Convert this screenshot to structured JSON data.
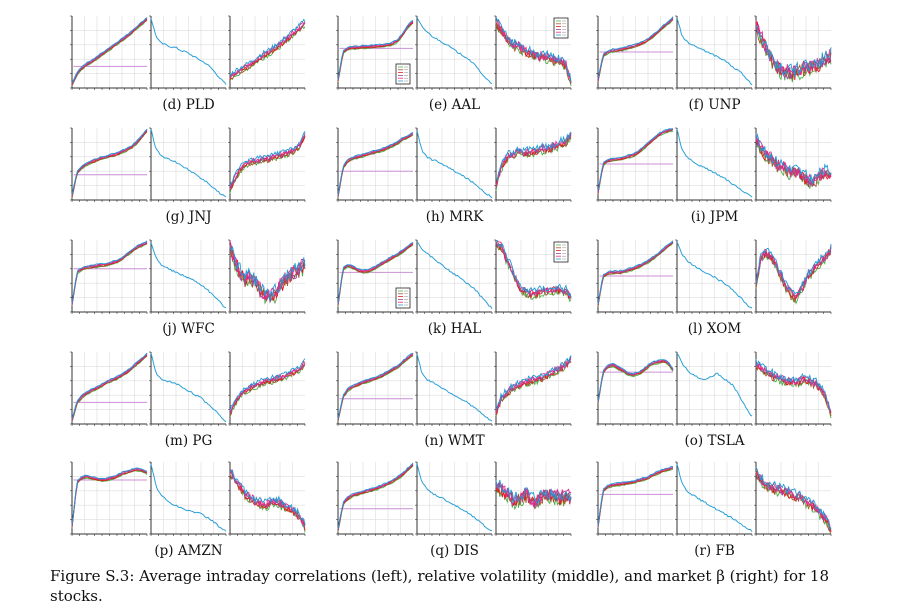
{
  "caption": "Figure S.3: Average intraday correlations (left), relative volatility (middle), and market β (right) for 18 stocks.",
  "colors": {
    "series": [
      "#4daf4a",
      "#a65628",
      "#e41a1c",
      "#984ea3",
      "#e7298a",
      "#1f9bd6"
    ],
    "reference": "#cc8fd6",
    "volatility": "#2aa0d8",
    "grid": "#dcdcdc",
    "frame": "#333333"
  },
  "chart_data": [
    {
      "type": "line",
      "label": "(d) PLD",
      "corr": [
        0.05,
        0.2,
        0.28,
        0.33,
        0.37,
        0.42,
        0.47,
        0.52,
        0.57,
        0.62,
        0.67,
        0.72,
        0.78,
        0.84,
        0.9,
        0.96
      ],
      "corr_ref": 0.3,
      "vol": [
        0.97,
        0.72,
        0.62,
        0.6,
        0.57,
        0.56,
        0.52,
        0.5,
        0.46,
        0.42,
        0.38,
        0.34,
        0.28,
        0.2,
        0.12,
        0.05
      ],
      "beta": [
        0.15,
        0.2,
        0.24,
        0.28,
        0.32,
        0.37,
        0.42,
        0.46,
        0.5,
        0.55,
        0.6,
        0.66,
        0.72,
        0.78,
        0.84,
        0.9
      ],
      "beta_noise": 0.03,
      "legend_right": false,
      "legend_left": false
    },
    {
      "type": "line",
      "label": "(e) AAL",
      "corr": [
        0.1,
        0.5,
        0.55,
        0.56,
        0.56,
        0.57,
        0.57,
        0.58,
        0.58,
        0.59,
        0.6,
        0.62,
        0.66,
        0.75,
        0.86,
        0.92
      ],
      "corr_ref": 0.55,
      "vol": [
        0.97,
        0.85,
        0.78,
        0.72,
        0.68,
        0.64,
        0.6,
        0.55,
        0.5,
        0.46,
        0.42,
        0.36,
        0.28,
        0.2,
        0.12,
        0.05
      ],
      "beta": [
        0.9,
        0.82,
        0.68,
        0.62,
        0.58,
        0.55,
        0.5,
        0.48,
        0.45,
        0.43,
        0.42,
        0.4,
        0.38,
        0.36,
        0.3,
        0.1
      ],
      "beta_noise": 0.06,
      "legend_right": true,
      "legend_left": true
    },
    {
      "type": "line",
      "label": "(f) UNP",
      "corr": [
        0.1,
        0.45,
        0.5,
        0.52,
        0.53,
        0.54,
        0.56,
        0.58,
        0.6,
        0.63,
        0.67,
        0.72,
        0.78,
        0.85,
        0.9,
        0.97
      ],
      "corr_ref": 0.5,
      "vol": [
        0.98,
        0.72,
        0.64,
        0.6,
        0.57,
        0.54,
        0.5,
        0.47,
        0.44,
        0.4,
        0.36,
        0.3,
        0.25,
        0.2,
        0.12,
        0.05
      ],
      "beta": [
        0.88,
        0.7,
        0.55,
        0.42,
        0.32,
        0.25,
        0.22,
        0.2,
        0.2,
        0.25,
        0.3,
        0.28,
        0.3,
        0.35,
        0.4,
        0.45
      ],
      "beta_noise": 0.1,
      "legend_right": false,
      "legend_left": false
    },
    {
      "type": "line",
      "label": "(g) JNJ",
      "corr": [
        0.05,
        0.38,
        0.46,
        0.5,
        0.53,
        0.56,
        0.58,
        0.6,
        0.62,
        0.64,
        0.67,
        0.7,
        0.74,
        0.8,
        0.88,
        0.97
      ],
      "corr_ref": 0.35,
      "vol": [
        0.98,
        0.7,
        0.62,
        0.58,
        0.56,
        0.52,
        0.48,
        0.44,
        0.4,
        0.36,
        0.3,
        0.26,
        0.2,
        0.14,
        0.08,
        0.04
      ],
      "beta": [
        0.15,
        0.3,
        0.42,
        0.5,
        0.52,
        0.54,
        0.55,
        0.56,
        0.58,
        0.6,
        0.62,
        0.64,
        0.66,
        0.7,
        0.76,
        0.9
      ],
      "beta_noise": 0.03,
      "legend_right": false,
      "legend_left": false
    },
    {
      "type": "line",
      "label": "(h) MRK",
      "corr": [
        0.05,
        0.45,
        0.55,
        0.58,
        0.6,
        0.62,
        0.64,
        0.66,
        0.68,
        0.7,
        0.73,
        0.76,
        0.8,
        0.85,
        0.88,
        0.92
      ],
      "corr_ref": 0.4,
      "vol": [
        0.97,
        0.68,
        0.6,
        0.56,
        0.54,
        0.5,
        0.46,
        0.42,
        0.38,
        0.34,
        0.3,
        0.25,
        0.2,
        0.14,
        0.08,
        0.04
      ],
      "beta": [
        0.2,
        0.45,
        0.58,
        0.62,
        0.65,
        0.66,
        0.66,
        0.67,
        0.68,
        0.7,
        0.7,
        0.72,
        0.75,
        0.78,
        0.82,
        0.9
      ],
      "beta_noise": 0.05,
      "legend_right": false,
      "legend_left": false
    },
    {
      "type": "line",
      "label": "(i) JPM",
      "corr": [
        0.1,
        0.5,
        0.55,
        0.56,
        0.57,
        0.58,
        0.6,
        0.62,
        0.66,
        0.72,
        0.78,
        0.84,
        0.9,
        0.94,
        0.96,
        0.98
      ],
      "corr_ref": 0.5,
      "vol": [
        0.98,
        0.7,
        0.6,
        0.55,
        0.5,
        0.46,
        0.43,
        0.4,
        0.36,
        0.32,
        0.28,
        0.23,
        0.18,
        0.13,
        0.08,
        0.04
      ],
      "beta": [
        0.85,
        0.72,
        0.6,
        0.58,
        0.5,
        0.48,
        0.42,
        0.38,
        0.4,
        0.35,
        0.3,
        0.25,
        0.28,
        0.35,
        0.38,
        0.35
      ],
      "beta_noise": 0.08,
      "legend_right": false,
      "legend_left": false
    },
    {
      "type": "line",
      "label": "(j) WFC",
      "corr": [
        0.1,
        0.55,
        0.6,
        0.62,
        0.63,
        0.64,
        0.65,
        0.66,
        0.68,
        0.7,
        0.74,
        0.8,
        0.85,
        0.9,
        0.93,
        0.96
      ],
      "corr_ref": 0.6,
      "vol": [
        0.97,
        0.75,
        0.66,
        0.62,
        0.58,
        0.55,
        0.52,
        0.49,
        0.46,
        0.42,
        0.38,
        0.33,
        0.26,
        0.2,
        0.12,
        0.05
      ],
      "beta": [
        0.88,
        0.7,
        0.55,
        0.45,
        0.5,
        0.4,
        0.3,
        0.25,
        0.2,
        0.25,
        0.35,
        0.45,
        0.5,
        0.55,
        0.6,
        0.65
      ],
      "beta_noise": 0.1,
      "legend_right": false,
      "legend_left": false
    },
    {
      "type": "line",
      "label": "(k) HAL",
      "corr": [
        0.1,
        0.6,
        0.65,
        0.62,
        0.58,
        0.56,
        0.57,
        0.6,
        0.64,
        0.68,
        0.72,
        0.76,
        0.8,
        0.85,
        0.9,
        0.95
      ],
      "corr_ref": 0.55,
      "vol": [
        0.97,
        0.88,
        0.82,
        0.76,
        0.7,
        0.65,
        0.6,
        0.55,
        0.5,
        0.45,
        0.4,
        0.35,
        0.28,
        0.2,
        0.12,
        0.05
      ],
      "beta": [
        0.95,
        0.9,
        0.75,
        0.6,
        0.45,
        0.32,
        0.28,
        0.25,
        0.25,
        0.28,
        0.3,
        0.3,
        0.32,
        0.3,
        0.28,
        0.2
      ],
      "beta_noise": 0.05,
      "legend_right": true,
      "legend_left": true
    },
    {
      "type": "line",
      "label": "(l) XOM",
      "corr": [
        0.1,
        0.5,
        0.54,
        0.55,
        0.55,
        0.56,
        0.58,
        0.6,
        0.63,
        0.66,
        0.7,
        0.75,
        0.8,
        0.86,
        0.92,
        0.97
      ],
      "corr_ref": 0.5,
      "vol": [
        0.98,
        0.8,
        0.72,
        0.66,
        0.62,
        0.58,
        0.54,
        0.5,
        0.46,
        0.42,
        0.38,
        0.32,
        0.25,
        0.18,
        0.1,
        0.05
      ],
      "beta": [
        0.4,
        0.75,
        0.82,
        0.78,
        0.65,
        0.5,
        0.35,
        0.25,
        0.2,
        0.3,
        0.45,
        0.55,
        0.62,
        0.7,
        0.78,
        0.85
      ],
      "beta_noise": 0.06,
      "legend_right": false,
      "legend_left": false
    },
    {
      "type": "line",
      "label": "(m) PG",
      "corr": [
        0.05,
        0.3,
        0.38,
        0.43,
        0.47,
        0.5,
        0.54,
        0.58,
        0.61,
        0.64,
        0.68,
        0.72,
        0.78,
        0.84,
        0.9,
        0.96
      ],
      "corr_ref": 0.3,
      "vol": [
        0.98,
        0.7,
        0.62,
        0.6,
        0.58,
        0.56,
        0.52,
        0.48,
        0.44,
        0.4,
        0.36,
        0.3,
        0.24,
        0.18,
        0.1,
        0.04
      ],
      "beta": [
        0.15,
        0.3,
        0.4,
        0.46,
        0.5,
        0.53,
        0.56,
        0.58,
        0.6,
        0.62,
        0.64,
        0.66,
        0.7,
        0.72,
        0.76,
        0.85
      ],
      "beta_noise": 0.03,
      "legend_right": false,
      "legend_left": false
    },
    {
      "type": "line",
      "label": "(n) WMT",
      "corr": [
        0.05,
        0.38,
        0.48,
        0.52,
        0.55,
        0.58,
        0.6,
        0.62,
        0.65,
        0.68,
        0.72,
        0.76,
        0.8,
        0.86,
        0.92,
        0.97
      ],
      "corr_ref": 0.35,
      "vol": [
        0.98,
        0.7,
        0.62,
        0.58,
        0.55,
        0.5,
        0.46,
        0.42,
        0.38,
        0.34,
        0.3,
        0.25,
        0.2,
        0.14,
        0.08,
        0.04
      ],
      "beta": [
        0.15,
        0.35,
        0.42,
        0.48,
        0.52,
        0.55,
        0.58,
        0.6,
        0.62,
        0.64,
        0.66,
        0.7,
        0.74,
        0.78,
        0.82,
        0.9
      ],
      "beta_noise": 0.04,
      "legend_right": false,
      "legend_left": false
    },
    {
      "type": "line",
      "label": "(o) TSLA",
      "corr": [
        0.3,
        0.72,
        0.8,
        0.82,
        0.78,
        0.74,
        0.7,
        0.68,
        0.7,
        0.74,
        0.8,
        0.85,
        0.86,
        0.88,
        0.85,
        0.75
      ],
      "corr_ref": 0.72,
      "vol": [
        0.98,
        0.85,
        0.75,
        0.7,
        0.65,
        0.62,
        0.62,
        0.66,
        0.7,
        0.65,
        0.6,
        0.55,
        0.45,
        0.32,
        0.2,
        0.1
      ],
      "beta": [
        0.82,
        0.78,
        0.72,
        0.68,
        0.65,
        0.62,
        0.6,
        0.58,
        0.58,
        0.6,
        0.62,
        0.58,
        0.55,
        0.48,
        0.35,
        0.15
      ],
      "beta_noise": 0.05,
      "legend_right": false,
      "legend_left": false
    },
    {
      "type": "line",
      "label": "(p) AMZN",
      "corr": [
        0.1,
        0.72,
        0.78,
        0.8,
        0.78,
        0.76,
        0.75,
        0.76,
        0.78,
        0.8,
        0.84,
        0.86,
        0.88,
        0.9,
        0.88,
        0.85
      ],
      "corr_ref": 0.75,
      "vol": [
        0.98,
        0.66,
        0.55,
        0.48,
        0.42,
        0.4,
        0.36,
        0.33,
        0.32,
        0.3,
        0.28,
        0.24,
        0.2,
        0.14,
        0.08,
        0.04
      ],
      "beta": [
        0.85,
        0.75,
        0.65,
        0.55,
        0.5,
        0.45,
        0.42,
        0.4,
        0.42,
        0.45,
        0.42,
        0.38,
        0.35,
        0.3,
        0.22,
        0.1
      ],
      "beta_noise": 0.05,
      "legend_right": false,
      "legend_left": false
    },
    {
      "type": "line",
      "label": "(q) DIS",
      "corr": [
        0.05,
        0.42,
        0.5,
        0.54,
        0.56,
        0.58,
        0.6,
        0.62,
        0.64,
        0.67,
        0.7,
        0.74,
        0.78,
        0.83,
        0.9,
        0.96
      ],
      "corr_ref": 0.35,
      "vol": [
        0.98,
        0.72,
        0.62,
        0.57,
        0.53,
        0.5,
        0.46,
        0.42,
        0.38,
        0.34,
        0.3,
        0.25,
        0.2,
        0.14,
        0.08,
        0.04
      ],
      "beta": [
        0.7,
        0.62,
        0.55,
        0.5,
        0.45,
        0.5,
        0.55,
        0.48,
        0.45,
        0.5,
        0.55,
        0.52,
        0.5,
        0.5,
        0.52,
        0.5
      ],
      "beta_noise": 0.1,
      "legend_right": false,
      "legend_left": false
    },
    {
      "type": "line",
      "label": "(r) FB",
      "corr": [
        0.1,
        0.6,
        0.66,
        0.68,
        0.69,
        0.7,
        0.71,
        0.72,
        0.74,
        0.76,
        0.78,
        0.82,
        0.85,
        0.88,
        0.9,
        0.92
      ],
      "corr_ref": 0.55,
      "vol": [
        0.98,
        0.7,
        0.6,
        0.55,
        0.5,
        0.46,
        0.42,
        0.38,
        0.34,
        0.3,
        0.26,
        0.22,
        0.18,
        0.13,
        0.08,
        0.04
      ],
      "beta": [
        0.85,
        0.75,
        0.68,
        0.65,
        0.62,
        0.6,
        0.58,
        0.55,
        0.52,
        0.5,
        0.45,
        0.4,
        0.35,
        0.28,
        0.2,
        0.08
      ],
      "beta_noise": 0.06,
      "legend_right": false,
      "legend_left": false
    }
  ]
}
